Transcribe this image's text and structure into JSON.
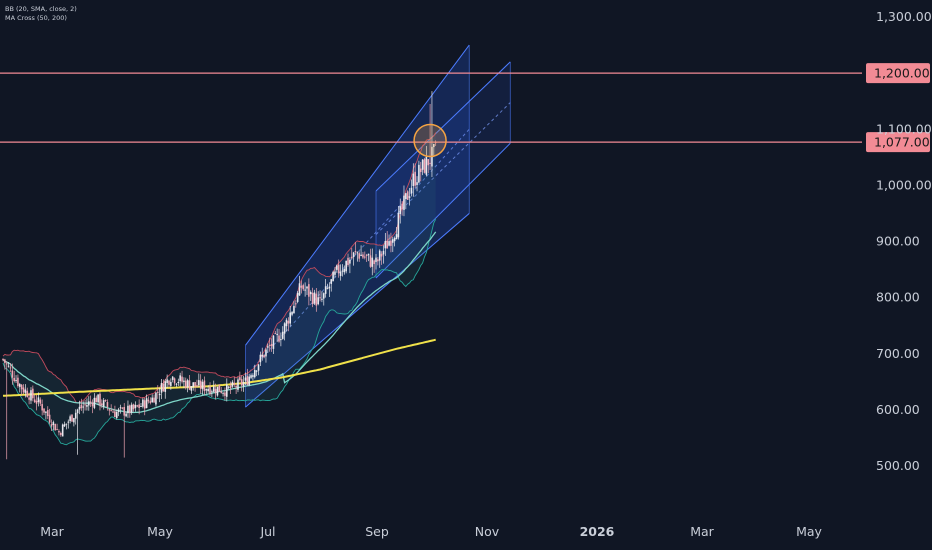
{
  "indicators": [
    "BB (20, SMA, close, 2)",
    "MA Cross (50, 200)"
  ],
  "colors": {
    "background": "#101624",
    "candle_up": "#e8e8ee",
    "candle_down": "#f0a6b4",
    "bb_upper": "#c24a5c",
    "bb_lower": "#26a69a",
    "ma50": "#7ed6c8",
    "ma200": "#f0e14a",
    "channel": "#2962ff",
    "hline": "#f28b95",
    "circle": "#f5a342"
  },
  "chart_data": {
    "type": "candlestick",
    "y_axis_ticks": [
      "1,300.00",
      "1,100.00",
      "1,000.00",
      "900.00",
      "800.00",
      "700.00",
      "600.00",
      "500.00"
    ],
    "x_axis_ticks": [
      "Mar",
      "May",
      "Jul",
      "Sep",
      "Nov",
      "2026",
      "Mar",
      "May"
    ],
    "x_axis_bold": [
      false,
      false,
      false,
      false,
      false,
      true,
      false,
      false
    ],
    "ylim": [
      455,
      1340
    ],
    "horizontal_lines": [
      {
        "label": "1,200.00",
        "value": 1200
      },
      {
        "label": "1,077.00",
        "value": 1077
      }
    ],
    "price_anchors": {
      "days": [
        0,
        10,
        20,
        30,
        40,
        50,
        60,
        70,
        80,
        90,
        100,
        110,
        120,
        130,
        140,
        150,
        160,
        170,
        180,
        190,
        200,
        210,
        220,
        232
      ],
      "close": [
        690,
        640,
        610,
        560,
        600,
        620,
        595,
        600,
        620,
        660,
        645,
        640,
        635,
        650,
        700,
        740,
        820,
        790,
        850,
        880,
        860,
        920,
        1010,
        1060
      ]
    },
    "ma200": {
      "days": [
        0,
        40,
        80,
        110,
        130,
        150,
        170,
        190,
        210,
        232
      ],
      "values": [
        625,
        632,
        638,
        642,
        648,
        658,
        672,
        690,
        708,
        725
      ]
    },
    "channels": [
      {
        "start_day": 130,
        "end_day": 250,
        "lower_start": 605,
        "lower_end": 950,
        "upper_start": 715,
        "upper_end": 1250
      },
      {
        "start_day": 200,
        "end_day": 272,
        "lower_start": 835,
        "lower_end": 1075,
        "upper_start": 990,
        "upper_end": 1220
      }
    ],
    "circle": {
      "day": 229,
      "value": 1080
    }
  }
}
